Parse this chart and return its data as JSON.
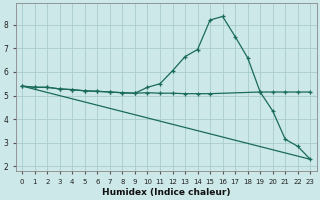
{
  "xlabel": "Humidex (Indice chaleur)",
  "background_color": "#cce8e8",
  "grid_color": "#aacccc",
  "line_color": "#1a6b5a",
  "xlim": [
    -0.5,
    23.5
  ],
  "ylim": [
    1.8,
    8.9
  ],
  "xticks": [
    0,
    1,
    2,
    3,
    4,
    5,
    6,
    7,
    8,
    9,
    10,
    11,
    12,
    13,
    14,
    15,
    16,
    17,
    18,
    19,
    20,
    21,
    22,
    23
  ],
  "yticks": [
    2,
    3,
    4,
    5,
    6,
    7,
    8
  ],
  "line1_x": [
    0,
    1,
    2,
    3,
    4,
    5,
    6,
    7,
    8,
    9,
    10,
    11,
    12,
    13,
    14,
    15,
    16,
    17,
    18,
    19,
    20,
    21,
    22,
    23
  ],
  "line1_y": [
    5.4,
    5.35,
    5.35,
    5.28,
    5.25,
    5.2,
    5.18,
    5.15,
    5.12,
    5.1,
    5.35,
    5.5,
    6.05,
    6.65,
    6.95,
    8.2,
    8.35,
    7.5,
    6.6,
    5.15,
    4.35,
    3.15,
    2.85,
    2.3
  ],
  "line2_x": [
    0,
    1,
    2,
    3,
    4,
    5,
    6,
    7,
    8,
    9,
    10,
    11,
    12,
    13,
    14,
    15,
    19,
    20,
    21,
    22,
    23
  ],
  "line2_y": [
    5.4,
    5.35,
    5.35,
    5.28,
    5.25,
    5.2,
    5.18,
    5.15,
    5.12,
    5.1,
    5.12,
    5.1,
    5.1,
    5.08,
    5.08,
    5.08,
    5.15,
    5.15,
    5.15,
    5.15,
    5.15
  ],
  "line3_x": [
    0,
    23
  ],
  "line3_y": [
    5.4,
    2.3
  ]
}
